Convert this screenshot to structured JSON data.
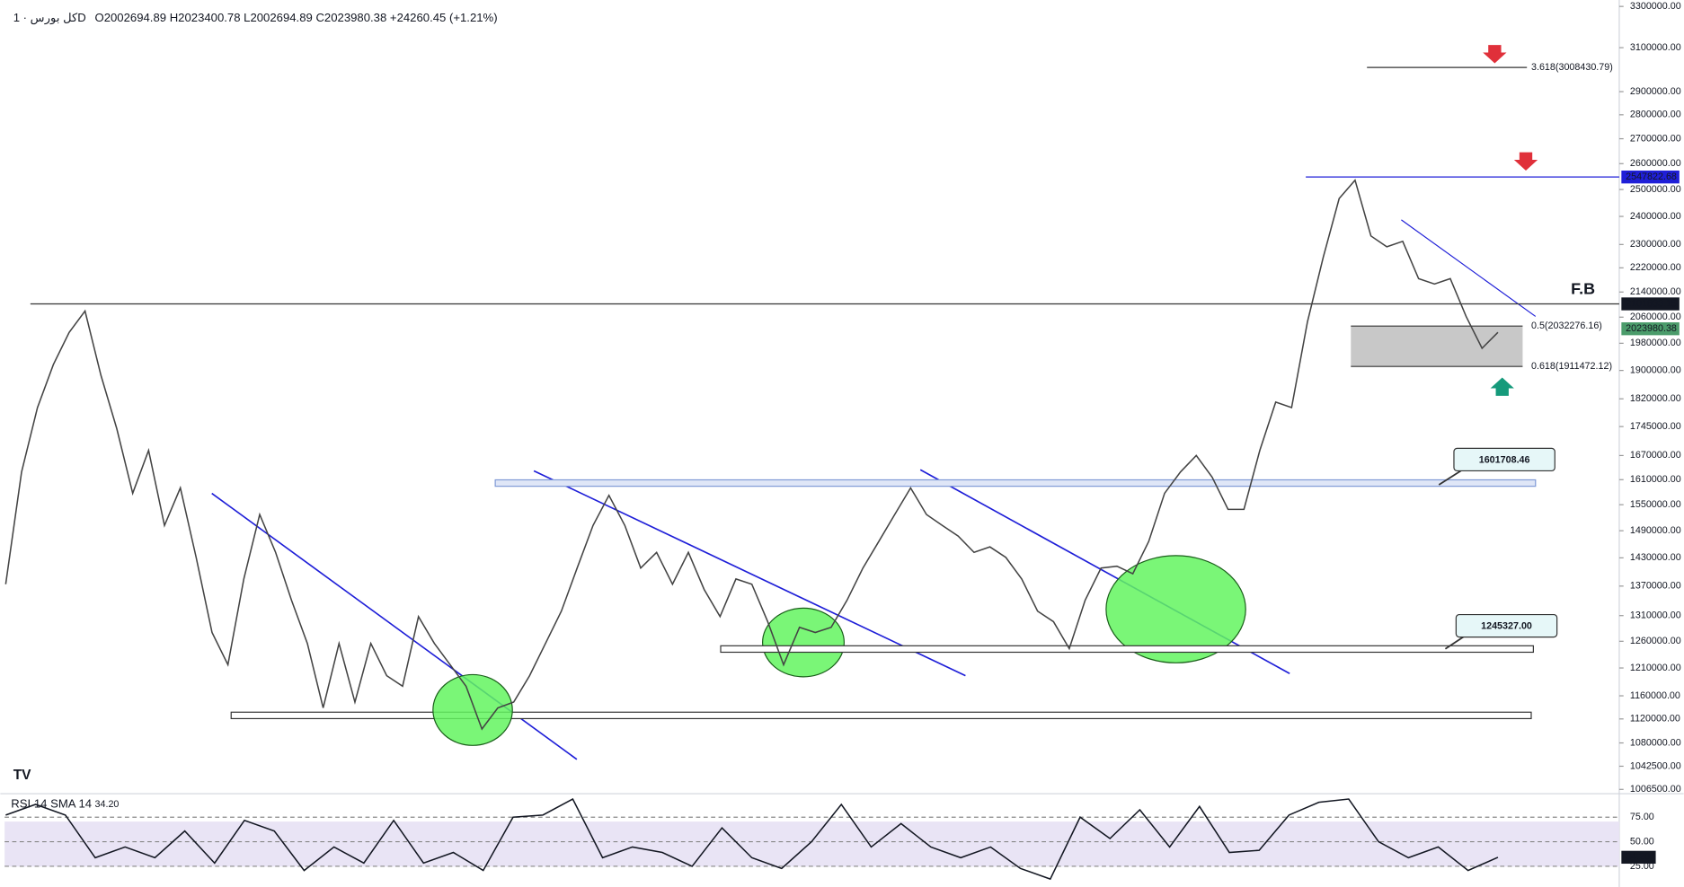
{
  "header": {
    "symbol": "کل بورس · 1D",
    "ohlc": "O2002694.89 H2023400.78 L2002694.89 C2023980.38 +24260.45 (+1.21%)"
  },
  "chart_data": [
    {
      "type": "line",
      "log_scale": true,
      "color": "#444444",
      "ylim": [
        1006500,
        3300000
      ],
      "yticks": [
        {
          "value": 3300000,
          "label": "3300000.00"
        },
        {
          "value": 3100000,
          "label": "3100000.00"
        },
        {
          "value": 2900000,
          "label": "2900000.00"
        },
        {
          "value": 2800000,
          "label": "2800000.00"
        },
        {
          "value": 2700000,
          "label": "2700000.00"
        },
        {
          "value": 2600000,
          "label": "2600000.00"
        },
        {
          "value": 2500000,
          "label": "2500000.00"
        },
        {
          "value": 2400000,
          "label": "2400000.00"
        },
        {
          "value": 2300000,
          "label": "2300000.00"
        },
        {
          "value": 2220000,
          "label": "2220000.00"
        },
        {
          "value": 2140000,
          "label": "2140000.00"
        },
        {
          "value": 2060000,
          "label": "2060000.00"
        },
        {
          "value": 1980000,
          "label": "1980000.00"
        },
        {
          "value": 1900000,
          "label": "1900000.00"
        },
        {
          "value": 1820000,
          "label": "1820000.00"
        },
        {
          "value": 1745000,
          "label": "1745000.00"
        },
        {
          "value": 1670000,
          "label": "1670000.00"
        },
        {
          "value": 1610000,
          "label": "1610000.00"
        },
        {
          "value": 1550000,
          "label": "1550000.00"
        },
        {
          "value": 1490000,
          "label": "1490000.00"
        },
        {
          "value": 1430000,
          "label": "1430000.00"
        },
        {
          "value": 1370000,
          "label": "1370000.00"
        },
        {
          "value": 1310000,
          "label": "1310000.00"
        },
        {
          "value": 1260000,
          "label": "1260000.00"
        },
        {
          "value": 1210000,
          "label": "1210000.00"
        },
        {
          "value": 1160000,
          "label": "1160000.00"
        },
        {
          "value": 1120000,
          "label": "1120000.00"
        },
        {
          "value": 1080000,
          "label": "1080000.00"
        },
        {
          "value": 1042500,
          "label": "1042500.00"
        },
        {
          "value": 1006500,
          "label": "1006500.00"
        }
      ],
      "values": [
        1374000,
        1629000,
        1796000,
        1917000,
        2013000,
        2079000,
        1886000,
        1739000,
        1577000,
        1683000,
        1502000,
        1590000,
        1431000,
        1277000,
        1216000,
        1385000,
        1527000,
        1442000,
        1341000,
        1256000,
        1139000,
        1256000,
        1149000,
        1256000,
        1196000,
        1177000,
        1308000,
        1256000,
        1216000,
        1177000,
        1103000,
        1139000,
        1149000,
        1196000,
        1256000,
        1319000,
        1408000,
        1502000,
        1572000,
        1502000,
        1408000,
        1442000,
        1374000,
        1442000,
        1363000,
        1308000,
        1385000,
        1374000,
        1298000,
        1216000,
        1287000,
        1277000,
        1287000,
        1341000,
        1408000,
        1466000,
        1527000,
        1590000,
        1527000,
        1502000,
        1478000,
        1442000,
        1454000,
        1431000,
        1385000,
        1319000,
        1298000,
        1246000,
        1341000,
        1408000,
        1412000,
        1396000,
        1466000,
        1577000,
        1629000,
        1670000,
        1616000,
        1539000,
        1539000,
        1683000,
        1811000,
        1796000,
        2046000,
        2256000,
        2466000,
        2535700,
        2330000,
        2292000,
        2311000,
        2184000,
        2166000,
        2184000,
        2062000,
        1965000,
        2013000
      ],
      "price_labels": [
        2547822.68,
        2101833.15,
        2023980.38
      ],
      "levels": [
        1601708.46,
        {
          "value": 1245327,
          "label": "1245327.00"
        }
      ],
      "fib": [
        {
          "value": 3008430.79,
          "label": "3.618(3008430.79)"
        },
        {
          "value": 2032276.16,
          "label": "0.5(2032276.16)"
        },
        {
          "value": 1911472.12,
          "label": "0.618(1911472.12)"
        }
      ],
      "annotation": "F.B"
    },
    {
      "type": "line",
      "name": "RSI 14 SMA 14",
      "color": "#131722",
      "ylim": [
        5,
        95
      ],
      "yticks": [
        {
          "value": 75,
          "label": "75.00"
        },
        {
          "value": 50,
          "label": "50.00"
        },
        {
          "value": 25,
          "label": "25.00"
        }
      ],
      "values": [
        77.2,
        88.0,
        77.2,
        33.7,
        44.6,
        33.7,
        60.9,
        28.3,
        71.7,
        60.9,
        20.7,
        44.6,
        28.3,
        71.7,
        28.3,
        39.1,
        20.7,
        75,
        77.2,
        93.5,
        33.7,
        44.6,
        39.1,
        25,
        64.1,
        33.7,
        22.8,
        50,
        88.0,
        44.6,
        68.5,
        44.6,
        33.7,
        44.6,
        22.8,
        12,
        75,
        53.3,
        82.6,
        44.6,
        85.9,
        39.1,
        41.3,
        77.2,
        90.2,
        93.5,
        50,
        33.7,
        44.6,
        20.7,
        34.2
      ],
      "current_label": "34.20"
    }
  ]
}
